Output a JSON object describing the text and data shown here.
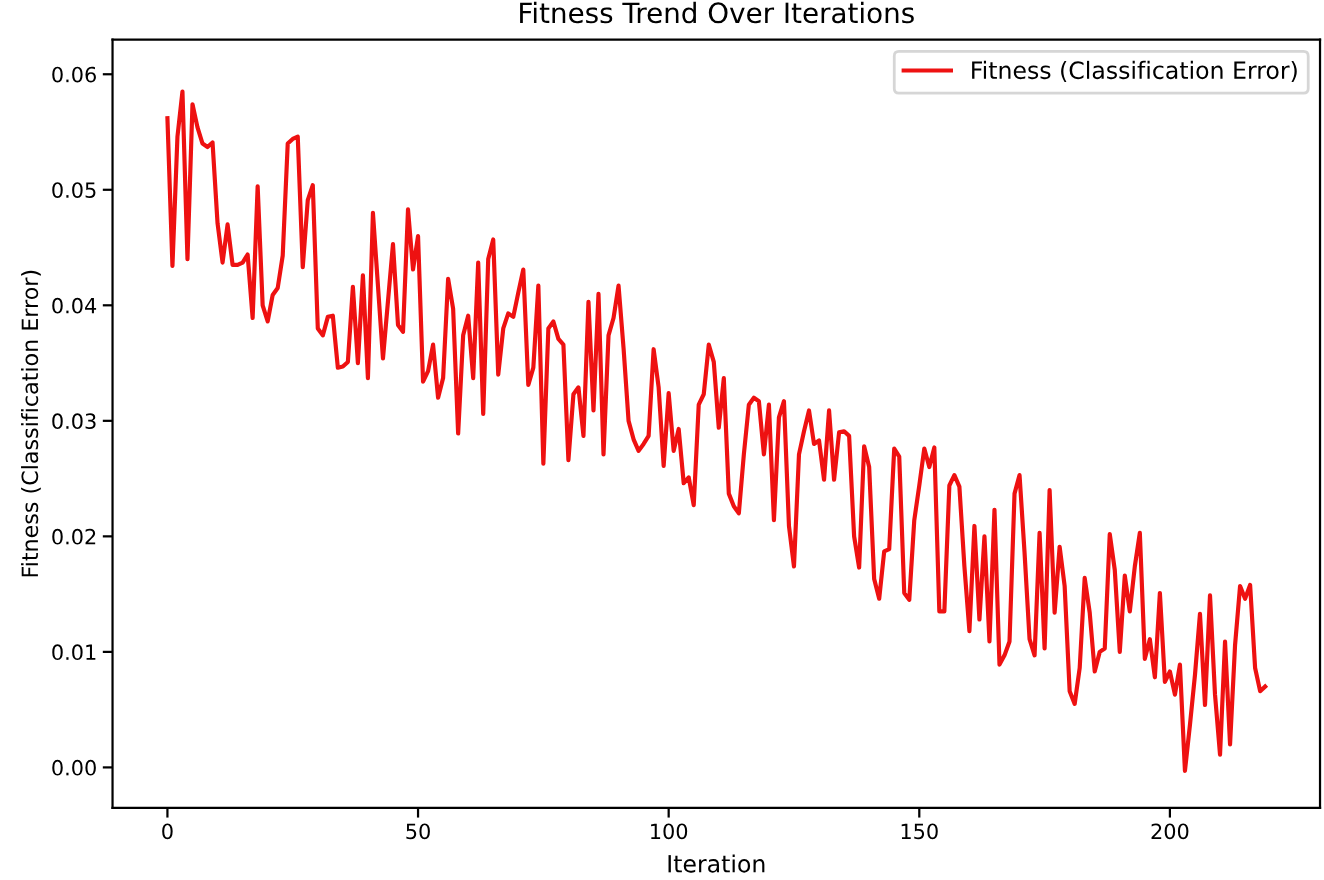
{
  "chart_data": {
    "type": "line",
    "title": "Fitness Trend Over Iterations",
    "xlabel": "Iteration",
    "ylabel": "Fitness (Classification Error)",
    "x": [
      0,
      1,
      2,
      3,
      4,
      5,
      6,
      7,
      8,
      9,
      10,
      11,
      12,
      13,
      14,
      15,
      16,
      17,
      18,
      19,
      20,
      21,
      22,
      23,
      24,
      25,
      26,
      27,
      28,
      29,
      30,
      31,
      32,
      33,
      34,
      35,
      36,
      37,
      38,
      39,
      40,
      41,
      43,
      45,
      46,
      47,
      48,
      49,
      50,
      51,
      52,
      53,
      54,
      55,
      56,
      57,
      58,
      59,
      60,
      61,
      62,
      63,
      64,
      65,
      66,
      67,
      68,
      69,
      70,
      71,
      72,
      73,
      74,
      75,
      76,
      77,
      78,
      79,
      80,
      81,
      82,
      83,
      84,
      85,
      86,
      87,
      88,
      89,
      90,
      91,
      92,
      93,
      94,
      95,
      96,
      97,
      98,
      99,
      100,
      101,
      102,
      103,
      104,
      105,
      106,
      107,
      108,
      109,
      110,
      111,
      112,
      113,
      114,
      115,
      116,
      117,
      118,
      119,
      120,
      121,
      122,
      123,
      124,
      125,
      126,
      127,
      128,
      129,
      130,
      131,
      132,
      133,
      134,
      135,
      136,
      137,
      138,
      139,
      140,
      141,
      142,
      143,
      144,
      145,
      146,
      147,
      148,
      149,
      150,
      151,
      152,
      153,
      154,
      155,
      156,
      157,
      158,
      159,
      160,
      161,
      162,
      163,
      164,
      165,
      166,
      167,
      168,
      169,
      170,
      171,
      172,
      173,
      174,
      175,
      176,
      177,
      178,
      179,
      180,
      181,
      182,
      183,
      184,
      185,
      186,
      187,
      188,
      189,
      190,
      191,
      192,
      193,
      194,
      195,
      196,
      197,
      198,
      199,
      200,
      201,
      202,
      203,
      204,
      205,
      206,
      207,
      208,
      209,
      210,
      211,
      212,
      213,
      214,
      215,
      216,
      217,
      218,
      219
    ],
    "series": [
      {
        "name": "Fitness (Classification Error)",
        "color": "#ee1111",
        "values": [
          0.0562,
          0.0434,
          0.0546,
          0.0585,
          0.044,
          0.0574,
          0.0554,
          0.054,
          0.0537,
          0.0541,
          0.0471,
          0.0437,
          0.047,
          0.0435,
          0.0435,
          0.0437,
          0.0444,
          0.0389,
          0.0503,
          0.04,
          0.0386,
          0.0409,
          0.0415,
          0.0443,
          0.054,
          0.0544,
          0.0546,
          0.0433,
          0.0491,
          0.0504,
          0.038,
          0.0374,
          0.039,
          0.0391,
          0.0346,
          0.0347,
          0.0351,
          0.0416,
          0.035,
          0.0426,
          0.0337,
          0.048,
          0.0354,
          0.0453,
          0.0383,
          0.0377,
          0.0483,
          0.0431,
          0.046,
          0.0334,
          0.0343,
          0.0366,
          0.032,
          0.0337,
          0.0423,
          0.0397,
          0.0289,
          0.0374,
          0.0391,
          0.0337,
          0.0437,
          0.0306,
          0.044,
          0.0457,
          0.034,
          0.038,
          0.0393,
          0.039,
          0.0411,
          0.0431,
          0.0331,
          0.0346,
          0.0417,
          0.0263,
          0.038,
          0.0386,
          0.0371,
          0.0366,
          0.0266,
          0.0323,
          0.0329,
          0.0287,
          0.0403,
          0.0309,
          0.041,
          0.0271,
          0.0374,
          0.0389,
          0.0417,
          0.0363,
          0.03,
          0.0284,
          0.0274,
          0.028,
          0.0287,
          0.0362,
          0.0329,
          0.0261,
          0.0324,
          0.0274,
          0.0293,
          0.0246,
          0.0251,
          0.0227,
          0.0314,
          0.0323,
          0.0366,
          0.0351,
          0.0294,
          0.0337,
          0.0237,
          0.0226,
          0.022,
          0.0271,
          0.0314,
          0.032,
          0.0317,
          0.0271,
          0.0314,
          0.0214,
          0.0303,
          0.0317,
          0.0209,
          0.0174,
          0.0271,
          0.0291,
          0.0309,
          0.028,
          0.0283,
          0.0249,
          0.0309,
          0.0249,
          0.029,
          0.0291,
          0.0287,
          0.02,
          0.0173,
          0.0278,
          0.026,
          0.0163,
          0.0146,
          0.0187,
          0.0189,
          0.0276,
          0.0269,
          0.0151,
          0.0145,
          0.0214,
          0.0244,
          0.0276,
          0.026,
          0.0277,
          0.0135,
          0.0135,
          0.0244,
          0.0253,
          0.0243,
          0.0174,
          0.0118,
          0.0209,
          0.0128,
          0.02,
          0.0109,
          0.0223,
          0.0089,
          0.0097,
          0.0109,
          0.0237,
          0.0253,
          0.0186,
          0.0111,
          0.0097,
          0.0203,
          0.0103,
          0.024,
          0.0134,
          0.0191,
          0.0157,
          0.0066,
          0.0055,
          0.0086,
          0.0164,
          0.0134,
          0.0083,
          0.01,
          0.0103,
          0.0202,
          0.0171,
          0.01,
          0.0166,
          0.0135,
          0.0174,
          0.0203,
          0.0094,
          0.0111,
          0.0078,
          0.0151,
          0.0074,
          0.0083,
          0.0063,
          0.0089,
          -0.0003,
          0.0037,
          0.008,
          0.0133,
          0.0054,
          0.0149,
          0.0063,
          0.0011,
          0.0109,
          0.002,
          0.0106,
          0.0157,
          0.0146,
          0.0158,
          0.0086,
          0.0066,
          0.007
        ]
      }
    ],
    "xlim": [
      -10.95,
      229.95
    ],
    "xticks": [
      0,
      50,
      100,
      150,
      200
    ],
    "ylim": [
      -0.0035,
      0.063
    ],
    "yticks": [
      {
        "value": 0,
        "label": "0.00"
      },
      {
        "value": 0.01,
        "label": "0.01"
      },
      {
        "value": 0.02,
        "label": "0.02"
      },
      {
        "value": 0.03,
        "label": "0.03"
      },
      {
        "value": 0.04,
        "label": "0.04"
      },
      {
        "value": 0.05,
        "label": "0.05"
      },
      {
        "value": 0.06,
        "label": "0.06"
      }
    ],
    "legend": "top right",
    "grid": false
  }
}
